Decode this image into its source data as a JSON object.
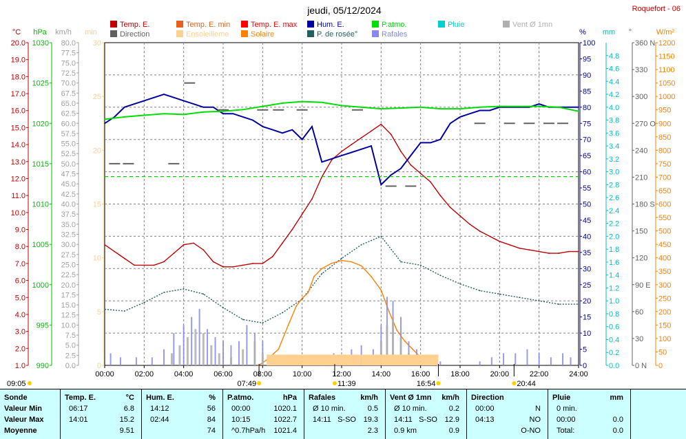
{
  "station": "Roquefort - 06",
  "chart_data": {
    "type": "line",
    "title": "jeudi, 05/12/2024",
    "x_ticks": [
      "00:00",
      "02:00",
      "04:00",
      "06:00",
      "08:00",
      "10:00",
      "12:00",
      "14:00",
      "16:00",
      "18:00",
      "20:00",
      "22:00",
      "24:00"
    ],
    "xlim_hours": [
      0,
      24
    ],
    "legend": [
      {
        "label": "Temp. E.",
        "color": "#c00000"
      },
      {
        "label": "Temp. E. min",
        "color": "#e86020"
      },
      {
        "label": "Temp. E. max",
        "color": "#ff0000"
      },
      {
        "label": "Hum. E.",
        "color": "#0000a0"
      },
      {
        "label": "P.atmo.",
        "color": "#00dd00"
      },
      {
        "label": "Pluie",
        "color": "#00d0d0"
      },
      {
        "label": "Vent Ø 1mn",
        "color": "#b0b0b0"
      },
      {
        "label": "Direction",
        "color": "#606060"
      },
      {
        "label": "Ensoleilleme",
        "color": "#ffd090"
      },
      {
        "label": "Solaire",
        "color": "#ff8000"
      },
      {
        "label": "P. de rosée°",
        "color": "#206060"
      },
      {
        "label": "Rafales",
        "color": "#8888ee"
      }
    ],
    "axes": {
      "temp": {
        "unit": "°C",
        "color": "#c00000",
        "min": 1.0,
        "max": 20.0,
        "ticks": [
          "20.0",
          "19.0",
          "18.0",
          "17.0",
          "16.0",
          "15.0",
          "14.0",
          "13.0",
          "12.0",
          "11.0",
          "10.0",
          "9.0",
          "8.0",
          "7.0",
          "6.0",
          "5.0",
          "4.0",
          "3.0",
          "2.0",
          "1.0"
        ]
      },
      "press": {
        "unit": "hPa",
        "color": "#00c000",
        "min": 990,
        "max": 1030,
        "ticks": [
          "1030",
          "1025",
          "1020",
          "1015",
          "1010",
          "1005",
          "1000",
          "995",
          "990"
        ]
      },
      "wind": {
        "unit": "km/h",
        "color": "#a0a0a0",
        "min": 0,
        "max": 80,
        "ticks": [
          "80.0",
          "77.5",
          "75.0",
          "72.5",
          "70.0",
          "67.5",
          "65.0",
          "62.5",
          "60.0",
          "57.5",
          "55.0",
          "52.5",
          "50.0",
          "47.5",
          "45.0",
          "42.5",
          "40.0",
          "37.5",
          "35.0",
          "32.5",
          "30.0",
          "27.5",
          "25.0",
          "22.5",
          "20.0",
          "17.5",
          "15.0",
          "12.5",
          "10.0",
          "7.5",
          "5.0",
          "2.5",
          "0.0"
        ]
      },
      "minutes": {
        "unit": "min",
        "color": "#ffd090",
        "min": 0,
        "max": 30,
        "ticks": [
          "30",
          "25",
          "20",
          "15",
          "10",
          "5",
          "0"
        ]
      },
      "hum": {
        "unit": "%",
        "color": "#0000a0",
        "min": 0,
        "max": 100,
        "ticks": [
          "100",
          "95",
          "90",
          "85",
          "80",
          "75",
          "70",
          "65",
          "60",
          "55",
          "50",
          "45",
          "40",
          "35",
          "30",
          "25",
          "20",
          "15",
          "10",
          "5",
          "0"
        ]
      },
      "rain": {
        "unit": "mm",
        "color": "#00c0c0",
        "min": 0,
        "max": 5.0,
        "ticks": [
          "4.8",
          "4.6",
          "4.4",
          "4.2",
          "4.0",
          "3.8",
          "3.6",
          "3.4",
          "3.2",
          "3.0",
          "2.8",
          "2.6",
          "2.4",
          "2.2",
          "2.0",
          "1.8",
          "1.6",
          "1.4",
          "1.2",
          "1.0",
          "0.8",
          "0.6",
          "0.4",
          "0.2",
          "0.0"
        ]
      },
      "dir": {
        "unit": "°",
        "color": "#606060",
        "min": 0,
        "max": 360,
        "ticks": [
          "360 N",
          "330",
          "300",
          "270 O",
          "240",
          "210",
          "180 S",
          "150",
          "120",
          "90 E",
          "60",
          "30",
          "0 N"
        ]
      },
      "solar": {
        "unit": "W/m²",
        "color": "#ff8000",
        "min": 0,
        "max": 1200,
        "ticks": [
          "1200",
          "1150",
          "1100",
          "1050",
          "1000",
          "950",
          "900",
          "850",
          "800",
          "750",
          "700",
          "650",
          "600",
          "550",
          "500",
          "450",
          "400",
          "350",
          "300",
          "250",
          "200",
          "150",
          "100",
          "50",
          "0"
        ]
      }
    },
    "time_markers": {
      "moonrise": "09:05",
      "sunrise": "07:49",
      "noon": "11:39",
      "sunset": "16:54",
      "moonset": "20:44"
    },
    "series": [
      {
        "name": "Temp. E.",
        "axis": "temp",
        "x": [
          0,
          0.5,
          1,
          1.5,
          2,
          2.5,
          3,
          3.5,
          4,
          4.5,
          5,
          5.5,
          6,
          6.5,
          7,
          7.5,
          8,
          8.5,
          9,
          9.5,
          10,
          10.5,
          11,
          11.5,
          12,
          12.5,
          13,
          13.5,
          14,
          14.5,
          15,
          15.5,
          16,
          16.5,
          17,
          17.5,
          18,
          18.5,
          19,
          19.5,
          20,
          20.5,
          21,
          21.5,
          22,
          22.5,
          23,
          23.5,
          24
        ],
        "y": [
          8.1,
          7.7,
          7.3,
          6.9,
          6.9,
          6.9,
          7.1,
          7.6,
          8.1,
          8.2,
          7.8,
          7.1,
          6.8,
          6.8,
          6.9,
          7.0,
          7.0,
          7.4,
          8.2,
          9.0,
          9.9,
          10.8,
          12.1,
          13.1,
          13.6,
          14.0,
          14.4,
          14.8,
          15.2,
          14.6,
          13.6,
          12.8,
          12.3,
          11.8,
          11.0,
          10.3,
          9.8,
          9.3,
          8.9,
          8.6,
          8.3,
          8.1,
          7.9,
          7.8,
          7.7,
          7.6,
          7.6,
          7.7,
          7.7
        ]
      },
      {
        "name": "Hum. E.",
        "axis": "hum",
        "x": [
          0,
          0.5,
          1,
          1.5,
          2,
          2.5,
          3,
          3.5,
          4,
          4.5,
          5,
          5.5,
          6,
          6.5,
          7,
          7.5,
          8,
          8.5,
          9,
          9.5,
          10,
          10.5,
          11,
          11.5,
          12,
          12.5,
          13,
          13.5,
          14,
          14.5,
          15,
          15.5,
          16,
          16.5,
          17,
          17.5,
          18,
          18.5,
          19,
          19.5,
          20,
          20.5,
          21,
          21.5,
          22,
          22.5,
          23,
          23.5,
          24
        ],
        "y": [
          75,
          77,
          80,
          81,
          82,
          83,
          84,
          83,
          82,
          81,
          80,
          80,
          78,
          78,
          77,
          76,
          74,
          73,
          72,
          73,
          70,
          74,
          63,
          64,
          65,
          66,
          67,
          68,
          56,
          59,
          61,
          65,
          69,
          69,
          70,
          75,
          77,
          78,
          79,
          79,
          80,
          80,
          80,
          80,
          81,
          80,
          80,
          80,
          80
        ]
      },
      {
        "name": "P.atmo.",
        "axis": "press",
        "x": [
          0,
          1,
          2,
          3,
          4,
          5,
          6,
          7,
          8,
          9,
          10,
          11,
          12,
          13,
          14,
          15,
          16,
          17,
          18,
          19,
          20,
          21,
          22,
          23,
          24
        ],
        "y": [
          1020.5,
          1020.8,
          1021.0,
          1021.2,
          1021.1,
          1021.4,
          1021.5,
          1021.7,
          1022.1,
          1022.5,
          1022.7,
          1022.6,
          1022.2,
          1022.0,
          1021.8,
          1021.9,
          1022.0,
          1021.8,
          1021.8,
          1022.0,
          1022.1,
          1022.1,
          1022.1,
          1022.0,
          1021.5
        ]
      },
      {
        "name": "P. de rosée°",
        "axis": "temp",
        "x": [
          0,
          1,
          2,
          3,
          4,
          5,
          6,
          7,
          8,
          9,
          10,
          11,
          12,
          13,
          14,
          15,
          16,
          17,
          18,
          19,
          20,
          21,
          22,
          23,
          24
        ],
        "y": [
          4.3,
          4.2,
          4.7,
          5.3,
          5.5,
          5.2,
          4.4,
          3.7,
          3.5,
          4.1,
          4.9,
          6.4,
          7.3,
          8.1,
          8.6,
          7.1,
          6.9,
          6.3,
          5.8,
          5.4,
          5.2,
          5.0,
          4.8,
          4.6,
          4.6
        ]
      },
      {
        "name": "Solaire",
        "axis": "solar",
        "x": [
          7.8,
          8.2,
          8.8,
          9.3,
          9.7,
          10.0,
          10.3,
          10.6,
          11.0,
          11.5,
          12.0,
          12.5,
          13.0,
          13.5,
          14.0,
          14.4,
          14.8,
          15.2,
          15.6,
          16.0,
          16.5,
          16.9
        ],
        "y": [
          0,
          20,
          60,
          150,
          220,
          250,
          270,
          330,
          360,
          380,
          390,
          385,
          370,
          330,
          280,
          200,
          130,
          90,
          60,
          30,
          10,
          0
        ]
      },
      {
        "name": "Rafales",
        "axis": "wind",
        "x": [
          0.3,
          0.8,
          1.6,
          2.4,
          3.0,
          3.5,
          4.0,
          4.4,
          4.8,
          5.2,
          5.6,
          6.0,
          6.4,
          6.8,
          7.2,
          7.6,
          8.0,
          9.5,
          11.2,
          11.6,
          12.0,
          12.5,
          13.0,
          13.6,
          14.0,
          14.3,
          14.6,
          15.0,
          15.4,
          15.8,
          16.2,
          17.0,
          19.0,
          19.6,
          20.2,
          20.8,
          21.4,
          22.0,
          22.6,
          23.2,
          23.6
        ],
        "y": [
          3,
          2,
          2,
          2,
          4,
          8,
          10,
          12,
          14,
          9,
          7,
          6,
          5,
          6,
          10,
          8,
          6,
          2,
          2,
          3,
          2,
          4,
          5,
          4,
          10,
          17,
          16,
          12,
          6,
          4,
          2,
          1,
          1,
          2,
          3,
          3,
          4,
          3,
          2,
          3,
          2
        ]
      },
      {
        "name": "Vent Ø 1mn",
        "axis": "wind",
        "x": [
          3.4,
          3.8,
          4.2,
          4.6,
          5.0,
          5.4,
          5.8,
          6.4,
          7.0,
          7.6,
          8.0,
          14.0,
          14.3,
          14.6,
          15.0,
          15.4
        ],
        "y": [
          3,
          5,
          7,
          9,
          8,
          5,
          3,
          2,
          4,
          6,
          3,
          6,
          10,
          12,
          7,
          3
        ]
      },
      {
        "name": "Direction",
        "axis": "dir",
        "x": [
          0.5,
          1.2,
          3.5,
          4.3,
          6.0,
          8.0,
          8.8,
          10.0,
          12.8,
          14.5,
          15.5,
          19.0,
          20.5,
          21.5,
          22.5,
          23.2
        ],
        "y": [
          225,
          225,
          225,
          315,
          285,
          285,
          285,
          285,
          285,
          200,
          200,
          270,
          270,
          270,
          270,
          270
        ]
      },
      {
        "name": "Ensoleilleme",
        "axis": "minutes",
        "x": [
          8.2,
          9.0,
          10.0,
          11.0,
          12.0,
          13.0,
          14.0,
          15.0,
          16.0,
          16.6
        ],
        "y": [
          1,
          1,
          1,
          1,
          1,
          1,
          1,
          1,
          1,
          1
        ]
      }
    ]
  },
  "summary": {
    "headers": [
      "Sonde",
      "Temp. E.",
      "°C",
      "Hum. E.",
      "%",
      "P.atmo.",
      "hPa",
      "Rafales",
      "km/h",
      "Vent Ø 1mn",
      "km/h",
      "Direction",
      "Pluie",
      "mm"
    ],
    "rows": [
      {
        "label": "Valeur Min",
        "temp_t": "06:17",
        "temp_v": "6.8",
        "hum_t": "14:12",
        "hum_v": "56",
        "press_t": "00:00",
        "press_v": "1020.1",
        "gust_t": "Ø 10 min.",
        "gust_v": "0.5",
        "wind_t": "Ø 10 min.",
        "wind_v": "0.2",
        "dir_t": "00:00",
        "dir_v": "N",
        "rain_t": "0 min.",
        "rain_v": ""
      },
      {
        "label": "Valeur Max",
        "temp_t": "14:01",
        "temp_v": "15.2",
        "hum_t": "02:44",
        "hum_v": "84",
        "press_t": "10:15",
        "press_v": "1022.7",
        "gust_t": "14:11",
        "gust_d": "S-SO",
        "gust_v": "19.3",
        "wind_t": "14:11",
        "wind_d": "S-SO",
        "wind_v": "12.9",
        "dir_t": "04:13",
        "dir_v": "NO",
        "rain_t": "00:00",
        "rain_v": "0.0"
      },
      {
        "label": "Moyenne",
        "temp_t": "",
        "temp_v": "9.51",
        "hum_t": "",
        "hum_v": "74",
        "press_t": "^0.7hPa/h",
        "press_v": "1021.4",
        "gust_t": "",
        "gust_v": "2.3",
        "wind_t": "0.9 km",
        "wind_v": "0.9",
        "dir_t": "",
        "dir_v": "O-NO",
        "rain_t": "Total:",
        "rain_v": "0.0"
      }
    ]
  }
}
